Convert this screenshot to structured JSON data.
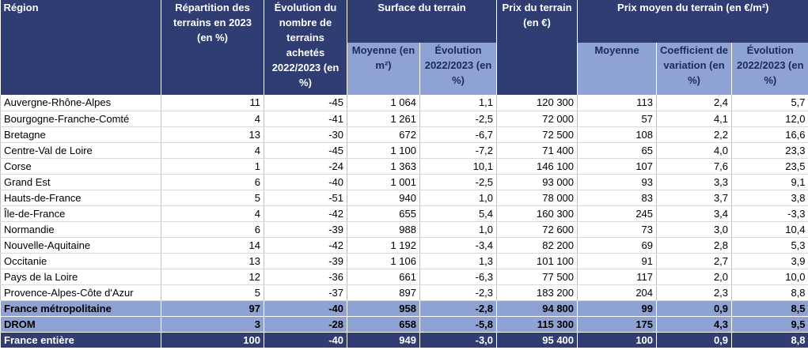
{
  "header": {
    "region": "Région",
    "repartition": "Répartition des terrains en 2023 (en %)",
    "evolution_nb": "Évolution du nombre de terrains achetés 2022/2023 (en %)",
    "surface": "Surface du terrain",
    "surface_moy": "Moyenne (en m²)",
    "surface_evo": "Évolution 2022/2023 (en %)",
    "prix": "Prix du terrain (en €)",
    "prix_m2": "Prix moyen du terrain (en €/m²)",
    "prix_m2_moy": "Moyenne",
    "prix_m2_cv": "Coefficient de variation (en %)",
    "prix_m2_evo": "Évolution 2022/2023 (en %)"
  },
  "rows": [
    [
      "Auvergne-Rhône-Alpes",
      "11",
      "-45",
      "1 064",
      "1,1",
      "120 300",
      "113",
      "2,4",
      "5,7"
    ],
    [
      "Bourgogne-Franche-Comté",
      "4",
      "-41",
      "1 261",
      "-2,5",
      "72 000",
      "57",
      "4,1",
      "12,0"
    ],
    [
      "Bretagne",
      "13",
      "-30",
      "672",
      "-6,7",
      "72 500",
      "108",
      "2,2",
      "16,6"
    ],
    [
      "Centre-Val de Loire",
      "4",
      "-45",
      "1 100",
      "-7,2",
      "71 400",
      "65",
      "4,0",
      "23,3"
    ],
    [
      "Corse",
      "1",
      "-24",
      "1 363",
      "10,1",
      "146 100",
      "107",
      "7,6",
      "23,5"
    ],
    [
      "Grand Est",
      "6",
      "-40",
      "1 001",
      "-2,5",
      "93 000",
      "93",
      "3,3",
      "9,1"
    ],
    [
      "Hauts-de-France",
      "5",
      "-51",
      "940",
      "1,0",
      "78 000",
      "83",
      "3,7",
      "3,8"
    ],
    [
      "Île-de-France",
      "4",
      "-42",
      "655",
      "5,4",
      "160 300",
      "245",
      "3,4",
      "-3,3"
    ],
    [
      "Normandie",
      "6",
      "-39",
      "988",
      "1,0",
      "72 600",
      "73",
      "3,0",
      "10,4"
    ],
    [
      "Nouvelle-Aquitaine",
      "14",
      "-42",
      "1 192",
      "-3,4",
      "82 200",
      "69",
      "2,8",
      "5,3"
    ],
    [
      "Occitanie",
      "13",
      "-39",
      "1 106",
      "1,3",
      "101 100",
      "91",
      "2,7",
      "3,9"
    ],
    [
      "Pays de la Loire",
      "12",
      "-36",
      "661",
      "-6,3",
      "77 500",
      "117",
      "2,0",
      "10,0"
    ],
    [
      "Provence-Alpes-Côte d'Azur",
      "5",
      "-37",
      "897",
      "-2,3",
      "183 200",
      "204",
      "2,3",
      "8,8"
    ]
  ],
  "totals": {
    "fm": [
      "France métropolitaine",
      "97",
      "-40",
      "958",
      "-2,8",
      "94 800",
      "99",
      "0,9",
      "8,5"
    ],
    "drom": [
      "DROM",
      "3",
      "-28",
      "658",
      "-5,8",
      "115 300",
      "175",
      "4,3",
      "9,5"
    ],
    "fe": [
      "France entière",
      "100",
      "-40",
      "949",
      "-3,0",
      "95 400",
      "100",
      "0,9",
      "8,8"
    ]
  }
}
